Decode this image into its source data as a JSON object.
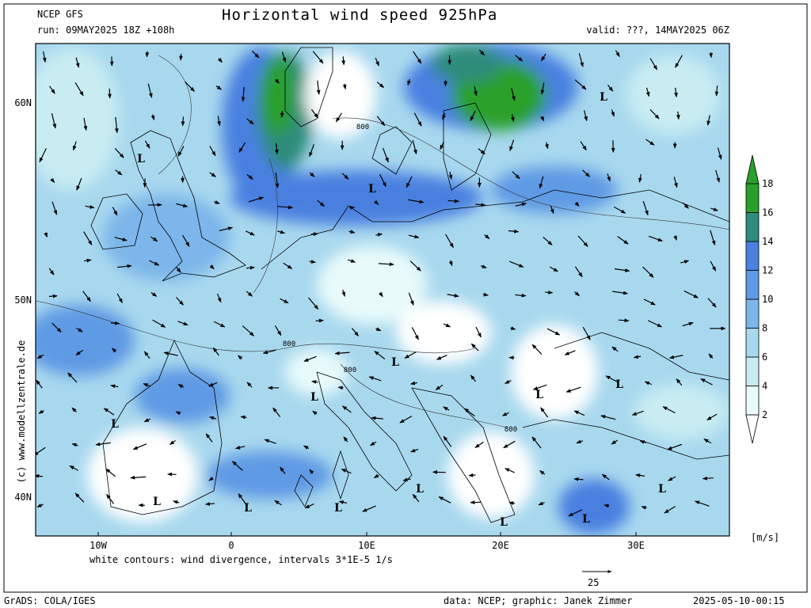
{
  "header": {
    "model": "NCEP GFS",
    "title": "Horizontal wind speed 925hPa",
    "run": "run: 09MAY2025 18Z +108h",
    "valid": "valid: ???, 14MAY2025 06Z"
  },
  "map": {
    "lat_labels": [
      "60N",
      "50N",
      "40N"
    ],
    "lon_labels": [
      "10W",
      "0",
      "10E",
      "20E",
      "30E"
    ],
    "lows": [
      "L",
      "L",
      "L",
      "L",
      "L",
      "L",
      "L",
      "L",
      "L",
      "L",
      "L",
      "L",
      "L",
      "L",
      "L"
    ],
    "contour_labels": [
      "800",
      "800",
      "800",
      "800"
    ]
  },
  "legend": {
    "levels": [
      2,
      4,
      6,
      8,
      10,
      12,
      14,
      16,
      18
    ],
    "colors": [
      "#ffffff",
      "#e8fafa",
      "#c8ecf2",
      "#a8d8ee",
      "#7cb6ea",
      "#5f9ae4",
      "#4a80e0",
      "#2d8c7a",
      "#2aa02a",
      "#2aa02a"
    ],
    "unit": "[m/s]"
  },
  "footer": {
    "copyright": "(c) www.modellzentrale.de",
    "note": "white contours: wind divergence, intervals 3*1E-5 1/s",
    "scale": "25",
    "software": "GrADS: COLA/IGES",
    "credit": "data: NCEP; graphic: Janek Zimmer",
    "timestamp": "2025-05-10-00:15"
  }
}
